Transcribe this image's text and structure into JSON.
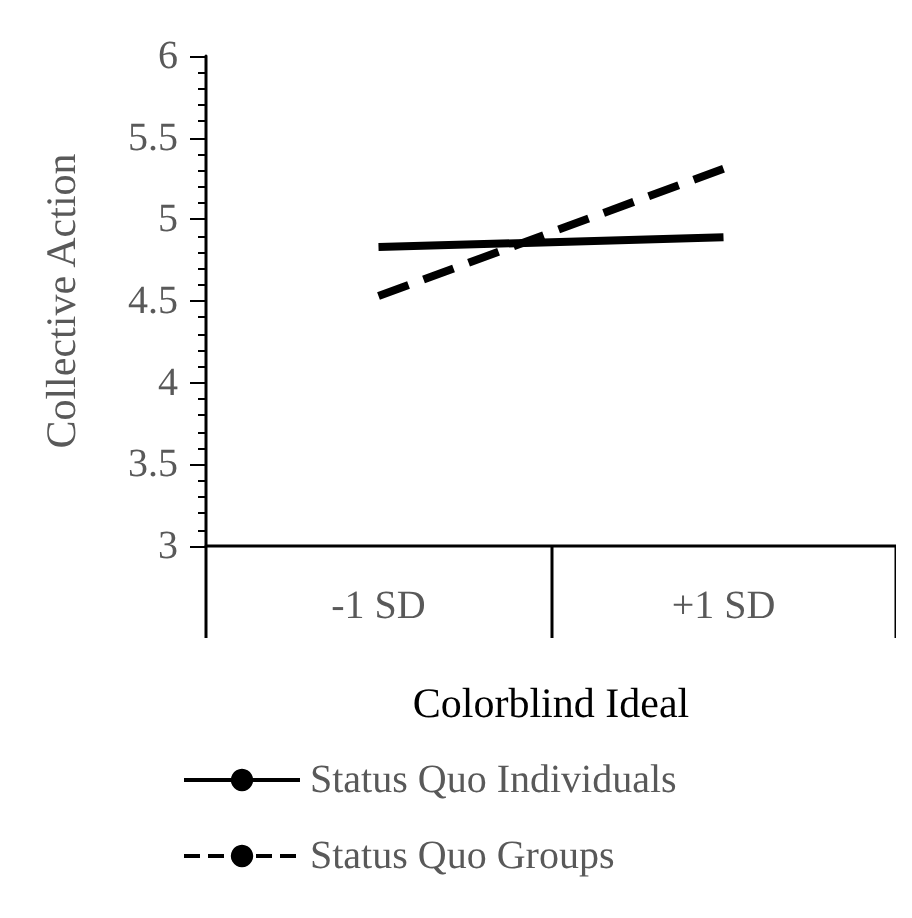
{
  "chart_data": {
    "type": "line",
    "xlabel": "Colorblind Ideal",
    "ylabel": "Collective Action",
    "categories": [
      "-1 SD",
      "+1 SD"
    ],
    "series": [
      {
        "name": "Status Quo Individuals",
        "color": "#000000",
        "values": [
          4.83,
          4.89
        ],
        "line_style": "solid"
      },
      {
        "name": "Status Quo Groups",
        "color": "#000000",
        "values": [
          4.53,
          5.31
        ],
        "line_style": "dashed"
      }
    ],
    "ylim": [
      3,
      6
    ],
    "yticks": [
      3,
      3.5,
      4,
      4.5,
      5,
      5.5,
      6
    ],
    "grid": false,
    "legend": "bottom left",
    "marker": "none"
  }
}
